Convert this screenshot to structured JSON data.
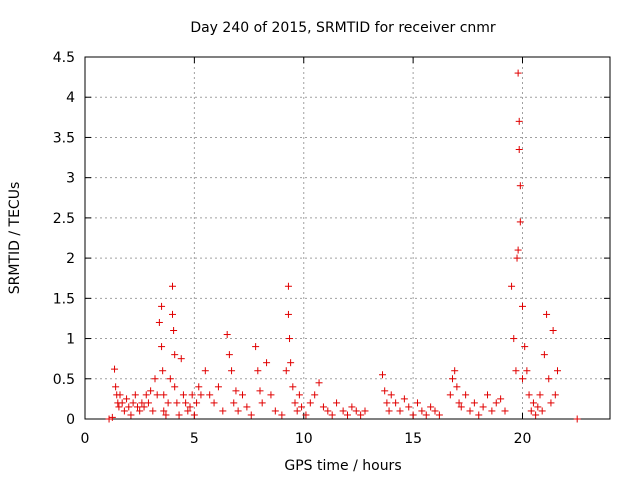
{
  "chart_data": {
    "type": "scatter",
    "title": "Day 240 of 2015, SRMTID for receiver cnmr",
    "xlabel": "GPS time / hours",
    "ylabel": "SRMTID / TECUs",
    "xlim": [
      0,
      24
    ],
    "ylim": [
      0,
      4.5
    ],
    "xticks": [
      0,
      5,
      10,
      15,
      20
    ],
    "yticks": [
      0,
      0.5,
      1,
      1.5,
      2,
      2.5,
      3,
      3.5,
      4,
      4.5
    ],
    "xtick_labels": [
      "0",
      "5",
      "10",
      "15",
      "20"
    ],
    "ytick_labels": [
      "0",
      "0.5",
      "1",
      "1.5",
      "2",
      "2.5",
      "3",
      "3.5",
      "4",
      "4.5"
    ],
    "grid": true,
    "marker": "+",
    "color": "#e00000",
    "series": [
      {
        "name": "SRMTID",
        "x": [
          1.1,
          1.25,
          1.35,
          1.4,
          1.45,
          1.5,
          1.55,
          1.6,
          1.7,
          1.8,
          1.9,
          2.0,
          2.1,
          2.2,
          2.3,
          2.4,
          2.5,
          2.6,
          2.7,
          2.8,
          2.9,
          3.0,
          3.1,
          3.2,
          3.3,
          3.4,
          3.5,
          3.5,
          3.55,
          3.6,
          3.6,
          3.7,
          3.8,
          3.9,
          4.0,
          4.0,
          4.05,
          4.1,
          4.1,
          4.2,
          4.3,
          4.4,
          4.5,
          4.6,
          4.7,
          4.8,
          4.9,
          5.0,
          5.1,
          5.2,
          5.3,
          5.5,
          5.7,
          5.9,
          6.1,
          6.3,
          6.5,
          6.6,
          6.7,
          6.8,
          6.9,
          7.0,
          7.2,
          7.4,
          7.6,
          7.8,
          7.9,
          8.0,
          8.1,
          8.3,
          8.5,
          8.7,
          9.0,
          9.2,
          9.3,
          9.3,
          9.35,
          9.4,
          9.5,
          9.6,
          9.7,
          9.8,
          9.9,
          10.1,
          10.3,
          10.5,
          10.7,
          10.9,
          11.1,
          11.3,
          11.5,
          11.8,
          12.0,
          12.2,
          12.4,
          12.6,
          12.8,
          13.6,
          13.7,
          13.8,
          13.9,
          14.0,
          14.2,
          14.4,
          14.6,
          14.8,
          15.0,
          15.2,
          15.4,
          15.6,
          15.8,
          16.0,
          16.2,
          16.7,
          16.8,
          16.9,
          17.0,
          17.1,
          17.2,
          17.4,
          17.6,
          17.8,
          18.0,
          18.2,
          18.4,
          18.6,
          18.8,
          19.0,
          19.2,
          19.5,
          19.6,
          19.7,
          19.75,
          19.8,
          19.8,
          19.85,
          19.85,
          19.9,
          19.9,
          20.0,
          20.0,
          20.1,
          20.2,
          20.3,
          20.4,
          20.5,
          20.6,
          20.7,
          20.8,
          20.9,
          21.0,
          21.1,
          21.2,
          21.3,
          21.4,
          21.5,
          21.6,
          22.5
        ],
        "y": [
          0.0,
          0.02,
          0.62,
          0.4,
          0.3,
          0.2,
          0.15,
          0.3,
          0.2,
          0.1,
          0.25,
          0.15,
          0.05,
          0.2,
          0.3,
          0.15,
          0.1,
          0.2,
          0.15,
          0.3,
          0.2,
          0.35,
          0.1,
          0.5,
          0.3,
          1.2,
          1.4,
          0.9,
          0.6,
          0.3,
          0.1,
          0.05,
          0.2,
          0.5,
          1.65,
          1.3,
          1.1,
          0.8,
          0.4,
          0.2,
          0.05,
          0.75,
          0.3,
          0.2,
          0.1,
          0.15,
          0.3,
          0.05,
          0.2,
          0.4,
          0.3,
          0.6,
          0.3,
          0.2,
          0.4,
          0.1,
          1.05,
          0.8,
          0.6,
          0.2,
          0.35,
          0.1,
          0.3,
          0.15,
          0.05,
          0.9,
          0.6,
          0.35,
          0.2,
          0.7,
          0.3,
          0.1,
          0.05,
          0.6,
          1.65,
          1.3,
          1.0,
          0.7,
          0.4,
          0.2,
          0.1,
          0.3,
          0.15,
          0.05,
          0.2,
          0.3,
          0.45,
          0.15,
          0.1,
          0.05,
          0.2,
          0.1,
          0.05,
          0.15,
          0.1,
          0.05,
          0.1,
          0.55,
          0.35,
          0.2,
          0.1,
          0.3,
          0.2,
          0.1,
          0.25,
          0.15,
          0.05,
          0.2,
          0.1,
          0.05,
          0.15,
          0.1,
          0.05,
          0.3,
          0.5,
          0.6,
          0.4,
          0.2,
          0.15,
          0.3,
          0.1,
          0.2,
          0.05,
          0.15,
          0.3,
          0.1,
          0.2,
          0.25,
          0.1,
          1.65,
          1.0,
          0.6,
          2.0,
          2.1,
          4.3,
          3.7,
          3.35,
          2.9,
          2.45,
          1.4,
          0.5,
          0.9,
          0.6,
          0.3,
          0.1,
          0.2,
          0.05,
          0.15,
          0.3,
          0.1,
          0.8,
          1.3,
          0.5,
          0.2,
          1.1,
          0.3,
          0.6,
          0.0
        ]
      }
    ]
  }
}
